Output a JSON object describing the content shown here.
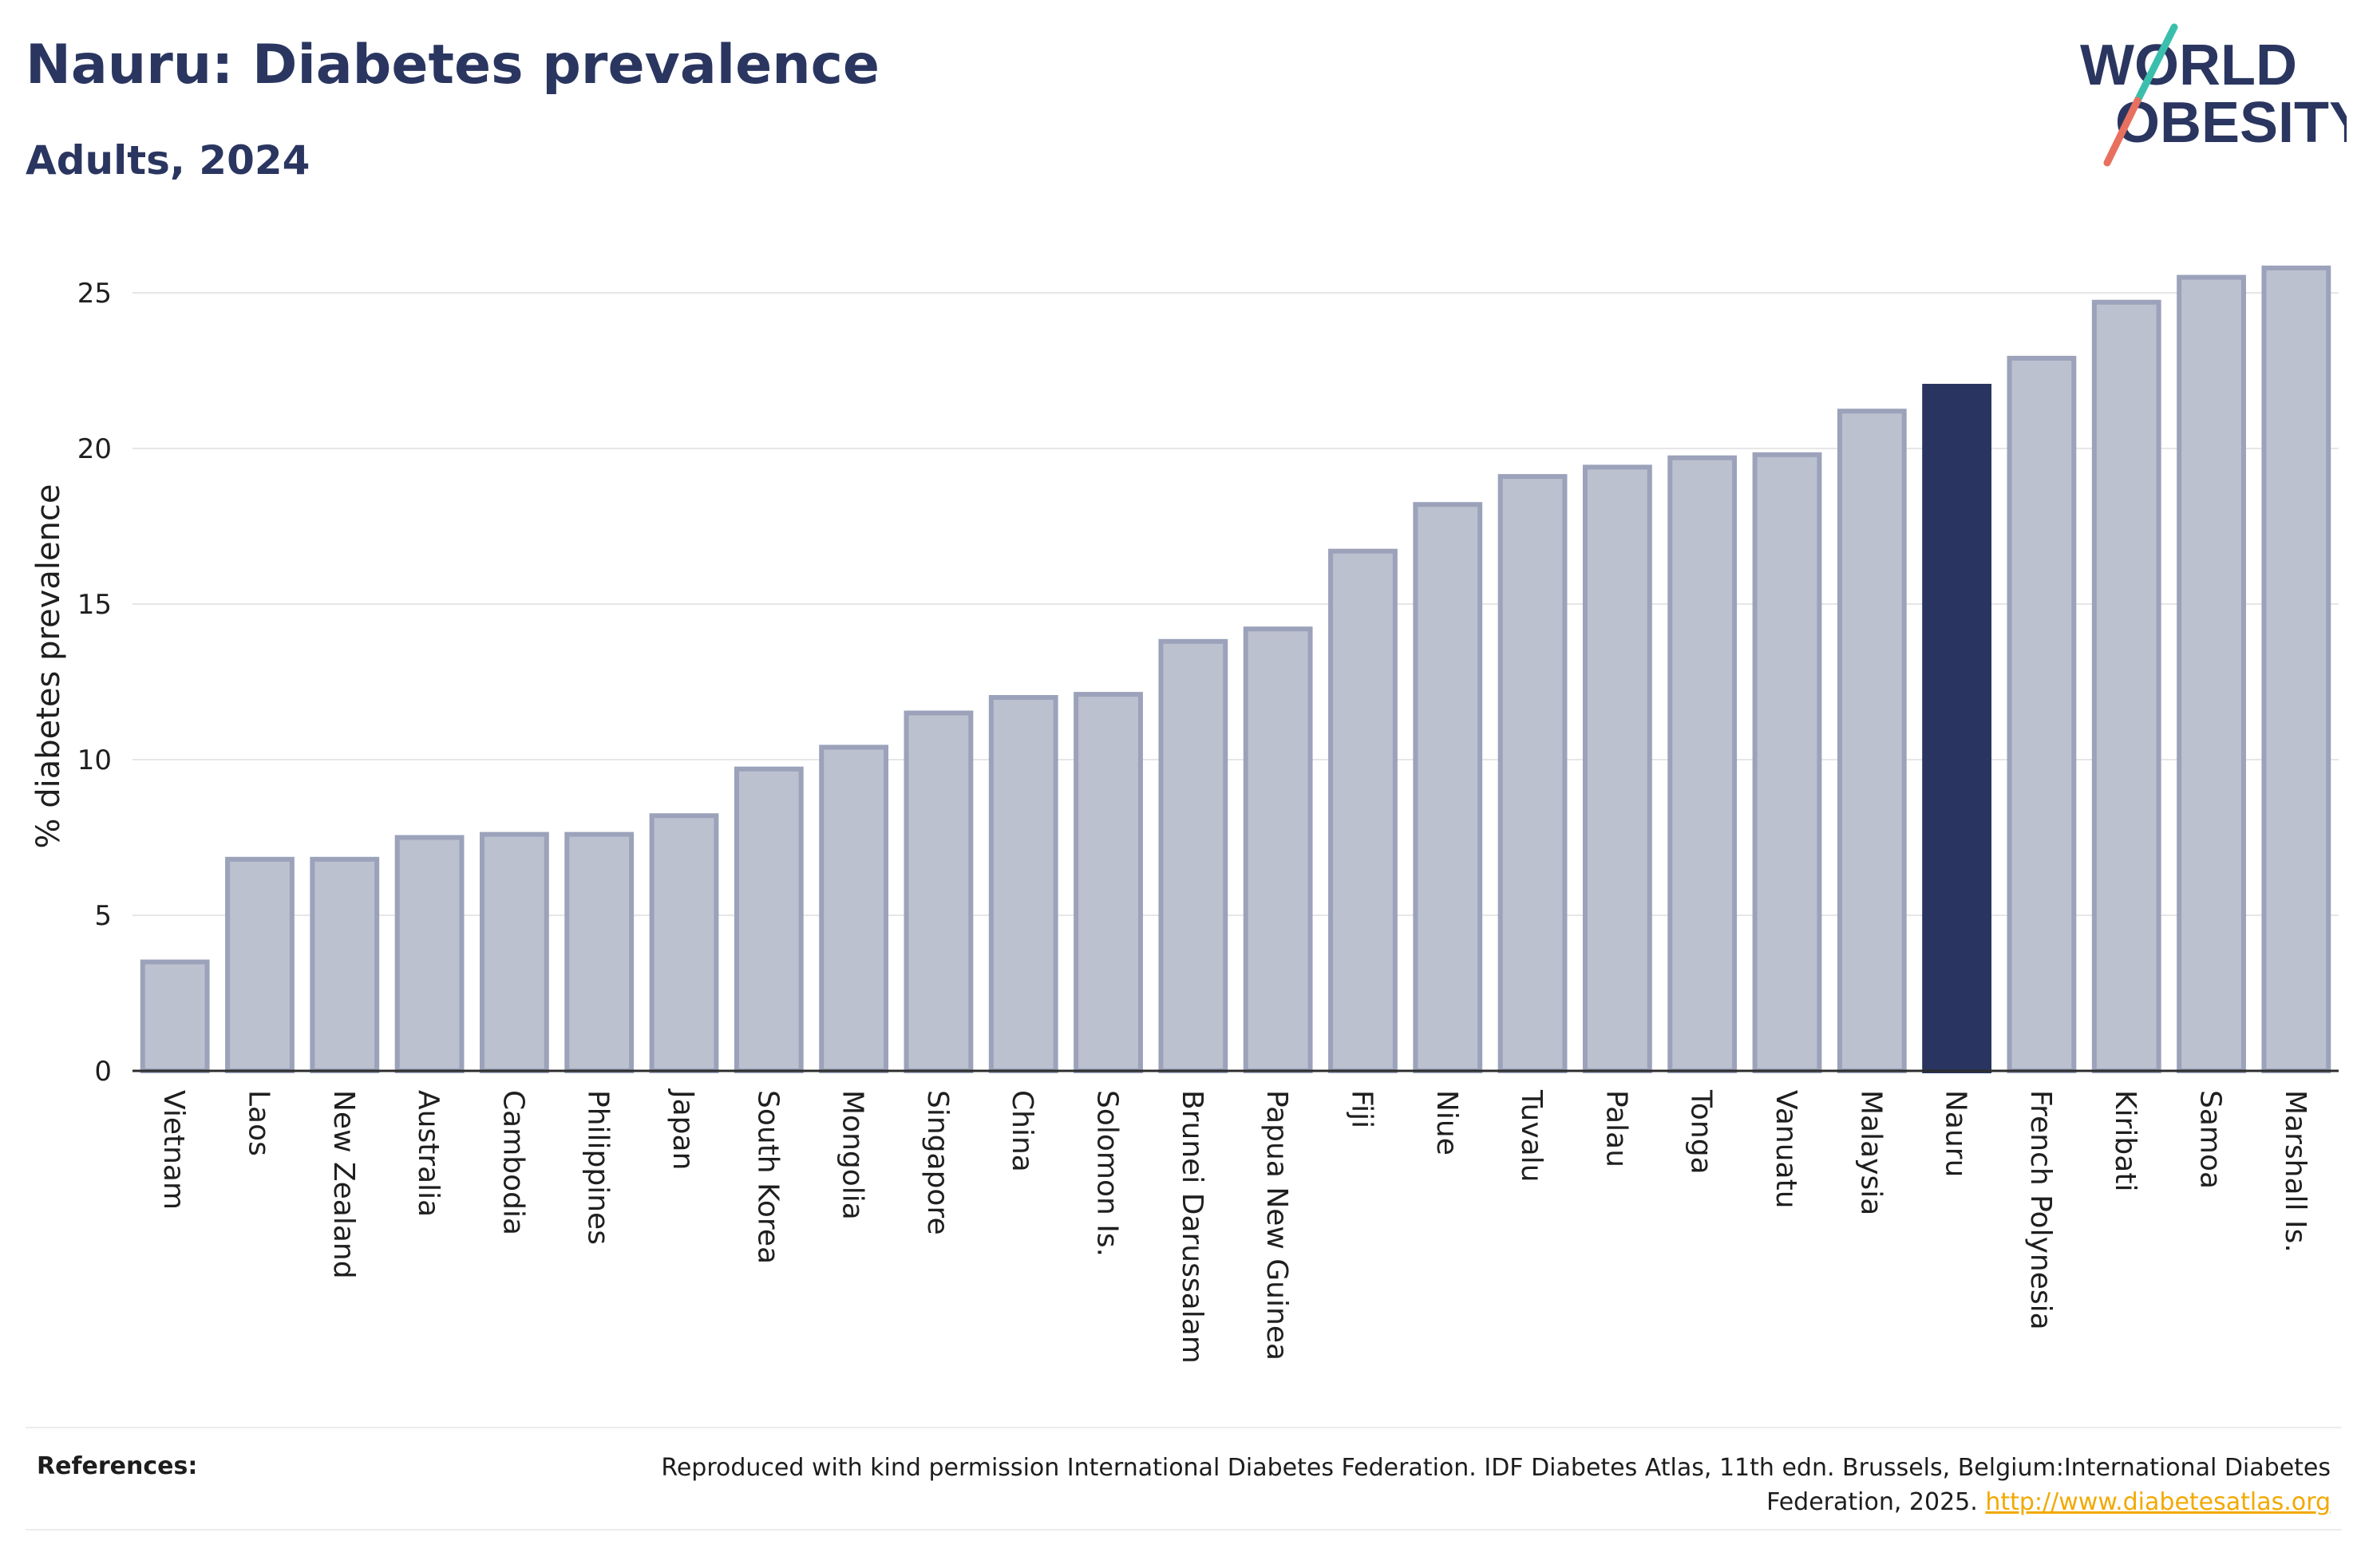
{
  "header": {
    "title": "Nauru: Diabetes prevalence",
    "subtitle": "Adults, 2024"
  },
  "logo": {
    "line1": "WORLD",
    "line2": "OBESITY",
    "accent_teal": "#3bbfad",
    "accent_coral": "#e8705f"
  },
  "colors": {
    "bar": "#bcc1cf",
    "bar_stroke": "#9ba2ba",
    "highlight": "#293560",
    "text": "#1f2a44"
  },
  "references": {
    "label": "References:",
    "text": "Reproduced with kind permission International Diabetes Federation. IDF Diabetes Atlas, 11th edn. Brussels, Belgium:International Diabetes Federation, 2025.",
    "link": "http://www.diabetesatlas.org"
  },
  "chart_data": {
    "type": "bar",
    "ylabel": "% diabetes prevalence",
    "ylim": [
      0,
      26
    ],
    "yticks": [
      0,
      5,
      10,
      15,
      20,
      25
    ],
    "grid": true,
    "highlight": "Nauru",
    "categories": [
      "Vietnam",
      "Laos",
      "New Zealand",
      "Australia",
      "Cambodia",
      "Philippines",
      "Japan",
      "South Korea",
      "Mongolia",
      "Singapore",
      "China",
      "Solomon Is.",
      "Brunei Darussalam",
      "Papua New Guinea",
      "Fiji",
      "Niue",
      "Tuvalu",
      "Palau",
      "Tonga",
      "Vanuatu",
      "Malaysia",
      "Nauru",
      "French Polynesia",
      "Kiribati",
      "Samoa",
      "Marshall Is."
    ],
    "values": [
      3.5,
      6.8,
      6.8,
      7.5,
      7.6,
      7.6,
      8.2,
      9.7,
      10.4,
      11.5,
      12.0,
      12.1,
      13.8,
      14.2,
      16.7,
      18.2,
      19.1,
      19.4,
      19.7,
      19.8,
      21.2,
      22.0,
      22.9,
      24.7,
      25.5,
      25.8
    ]
  }
}
